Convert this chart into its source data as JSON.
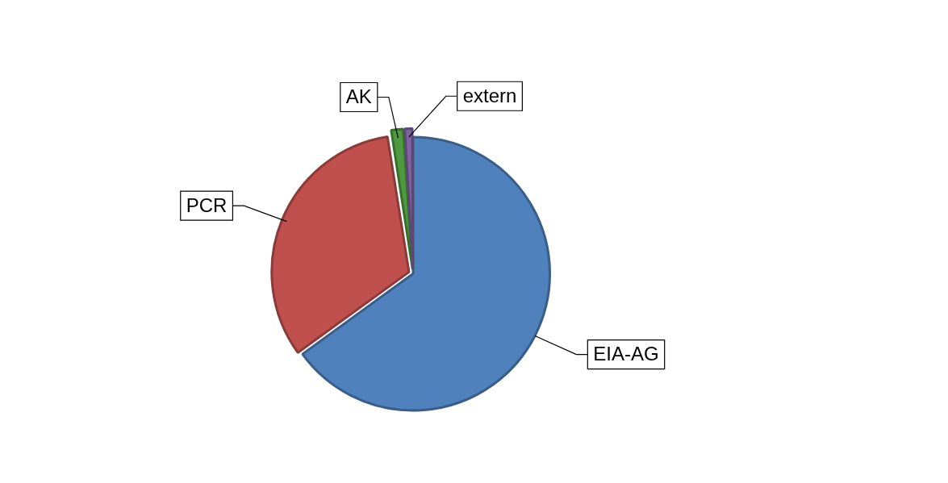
{
  "chart_data": {
    "type": "pie",
    "categories": [
      "EIA-AG",
      "PCR",
      "AK",
      "extern"
    ],
    "values": [
      65,
      32.5,
      1.5,
      1
    ],
    "colors": [
      "#4f81bd",
      "#c0504d",
      "#4e9a3f",
      "#8064a2"
    ],
    "legend": false
  }
}
